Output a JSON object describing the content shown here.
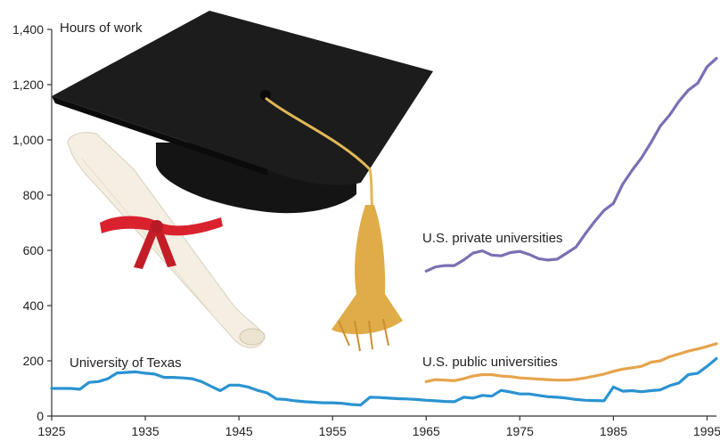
{
  "chart_data": {
    "type": "line",
    "title": "",
    "xlabel": "",
    "ylabel": "Hours of work",
    "xlim": [
      1925,
      1996
    ],
    "ylim": [
      0,
      1400
    ],
    "x_ticks": [
      "1925",
      "1935",
      "1945",
      "1955",
      "1965",
      "1975",
      "1985",
      "1995"
    ],
    "y_ticks": [
      "0",
      "200",
      "400",
      "600",
      "800",
      "1,000",
      "1,200",
      "1,400"
    ],
    "grid": false,
    "series": [
      {
        "name": "University of Texas",
        "color": "#2b93d1",
        "points": [
          [
            1925,
            100
          ],
          [
            1926,
            100
          ],
          [
            1927,
            100
          ],
          [
            1928,
            97
          ],
          [
            1929,
            122
          ],
          [
            1930,
            125
          ],
          [
            1931,
            135
          ],
          [
            1932,
            156
          ],
          [
            1933,
            158
          ],
          [
            1934,
            160
          ],
          [
            1935,
            155
          ],
          [
            1936,
            152
          ],
          [
            1937,
            140
          ],
          [
            1938,
            140
          ],
          [
            1939,
            138
          ],
          [
            1940,
            135
          ],
          [
            1941,
            125
          ],
          [
            1942,
            108
          ],
          [
            1943,
            92
          ],
          [
            1944,
            112
          ],
          [
            1945,
            112
          ],
          [
            1946,
            105
          ],
          [
            1947,
            93
          ],
          [
            1948,
            84
          ],
          [
            1949,
            62
          ],
          [
            1950,
            60
          ],
          [
            1951,
            55
          ],
          [
            1952,
            52
          ],
          [
            1953,
            50
          ],
          [
            1954,
            48
          ],
          [
            1955,
            48
          ],
          [
            1956,
            46
          ],
          [
            1957,
            42
          ],
          [
            1958,
            40
          ],
          [
            1959,
            68
          ],
          [
            1960,
            67
          ],
          [
            1961,
            65
          ],
          [
            1962,
            63
          ],
          [
            1963,
            62
          ],
          [
            1964,
            60
          ],
          [
            1965,
            57
          ],
          [
            1966,
            55
          ],
          [
            1967,
            53
          ],
          [
            1968,
            52
          ],
          [
            1969,
            68
          ],
          [
            1970,
            65
          ],
          [
            1971,
            75
          ],
          [
            1972,
            72
          ],
          [
            1973,
            93
          ],
          [
            1974,
            87
          ],
          [
            1975,
            80
          ],
          [
            1976,
            80
          ],
          [
            1977,
            75
          ],
          [
            1978,
            70
          ],
          [
            1979,
            68
          ],
          [
            1980,
            65
          ],
          [
            1981,
            60
          ],
          [
            1982,
            57
          ],
          [
            1983,
            56
          ],
          [
            1984,
            55
          ],
          [
            1985,
            105
          ],
          [
            1986,
            90
          ],
          [
            1987,
            92
          ],
          [
            1988,
            88
          ],
          [
            1989,
            92
          ],
          [
            1990,
            95
          ],
          [
            1991,
            110
          ],
          [
            1992,
            120
          ],
          [
            1993,
            150
          ],
          [
            1994,
            155
          ],
          [
            1995,
            180
          ],
          [
            1996,
            208
          ]
        ]
      },
      {
        "name": "U.S. private universities",
        "color": "#7b6fb4",
        "points": [
          [
            1965,
            525
          ],
          [
            1966,
            540
          ],
          [
            1967,
            545
          ],
          [
            1968,
            545
          ],
          [
            1969,
            565
          ],
          [
            1970,
            590
          ],
          [
            1971,
            598
          ],
          [
            1972,
            583
          ],
          [
            1973,
            580
          ],
          [
            1974,
            592
          ],
          [
            1975,
            596
          ],
          [
            1976,
            585
          ],
          [
            1977,
            570
          ],
          [
            1978,
            565
          ],
          [
            1979,
            568
          ],
          [
            1980,
            590
          ],
          [
            1981,
            612
          ],
          [
            1982,
            660
          ],
          [
            1983,
            705
          ],
          [
            1984,
            745
          ],
          [
            1985,
            770
          ],
          [
            1986,
            840
          ],
          [
            1987,
            890
          ],
          [
            1988,
            935
          ],
          [
            1989,
            990
          ],
          [
            1990,
            1050
          ],
          [
            1991,
            1090
          ],
          [
            1992,
            1140
          ],
          [
            1993,
            1180
          ],
          [
            1994,
            1205
          ],
          [
            1995,
            1265
          ],
          [
            1996,
            1295
          ]
        ]
      },
      {
        "name": "U.S. public universities",
        "color": "#e6a44c",
        "points": [
          [
            1965,
            125
          ],
          [
            1966,
            132
          ],
          [
            1967,
            130
          ],
          [
            1968,
            128
          ],
          [
            1969,
            135
          ],
          [
            1970,
            145
          ],
          [
            1971,
            150
          ],
          [
            1972,
            150
          ],
          [
            1973,
            145
          ],
          [
            1974,
            143
          ],
          [
            1975,
            138
          ],
          [
            1976,
            136
          ],
          [
            1977,
            134
          ],
          [
            1978,
            132
          ],
          [
            1979,
            130
          ],
          [
            1980,
            130
          ],
          [
            1981,
            133
          ],
          [
            1982,
            138
          ],
          [
            1983,
            145
          ],
          [
            1984,
            152
          ],
          [
            1985,
            162
          ],
          [
            1986,
            170
          ],
          [
            1987,
            175
          ],
          [
            1988,
            180
          ],
          [
            1989,
            195
          ],
          [
            1990,
            200
          ],
          [
            1991,
            215
          ],
          [
            1992,
            225
          ],
          [
            1993,
            235
          ],
          [
            1994,
            243
          ],
          [
            1995,
            252
          ],
          [
            1996,
            262
          ]
        ]
      }
    ],
    "annotations": [
      "University of Texas",
      "U.S. private universities",
      "U.S. public universities"
    ],
    "illustration": [
      "graduation-cap-icon",
      "diploma-scroll-icon"
    ]
  }
}
